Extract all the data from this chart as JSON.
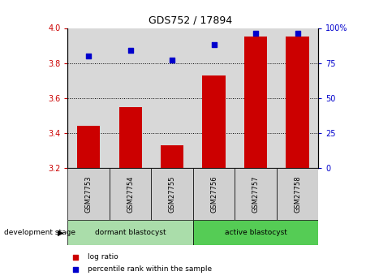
{
  "title": "GDS752 / 17894",
  "samples": [
    "GSM27753",
    "GSM27754",
    "GSM27755",
    "GSM27756",
    "GSM27757",
    "GSM27758"
  ],
  "log_ratio": [
    3.44,
    3.55,
    3.33,
    3.73,
    3.95,
    3.95
  ],
  "percentile_rank": [
    80,
    84,
    77,
    88,
    96,
    96
  ],
  "ylim_left": [
    3.2,
    4.0
  ],
  "ylim_right": [
    0,
    100
  ],
  "bar_color": "#cc0000",
  "dot_color": "#0000cc",
  "bar_bottom": 3.2,
  "yticks_left": [
    3.2,
    3.4,
    3.6,
    3.8,
    4.0
  ],
  "yticks_right": [
    0,
    25,
    50,
    75,
    100
  ],
  "ytick_right_labels": [
    "0",
    "25",
    "50",
    "75",
    "100%"
  ],
  "grid_lines": [
    3.4,
    3.6,
    3.8
  ],
  "groups": [
    {
      "label": "dormant blastocyst",
      "start": 0,
      "end": 3,
      "color": "#aaddaa"
    },
    {
      "label": "active blastocyst",
      "start": 3,
      "end": 6,
      "color": "#55cc55"
    }
  ],
  "group_label_prefix": "development stage",
  "legend_items": [
    {
      "label": "log ratio",
      "color": "#cc0000"
    },
    {
      "label": "percentile rank within the sample",
      "color": "#0000cc"
    }
  ],
  "tick_label_color_left": "#cc0000",
  "tick_label_color_right": "#0000cc",
  "plot_bg": "#d8d8d8",
  "label_box_bg": "#d0d0d0"
}
